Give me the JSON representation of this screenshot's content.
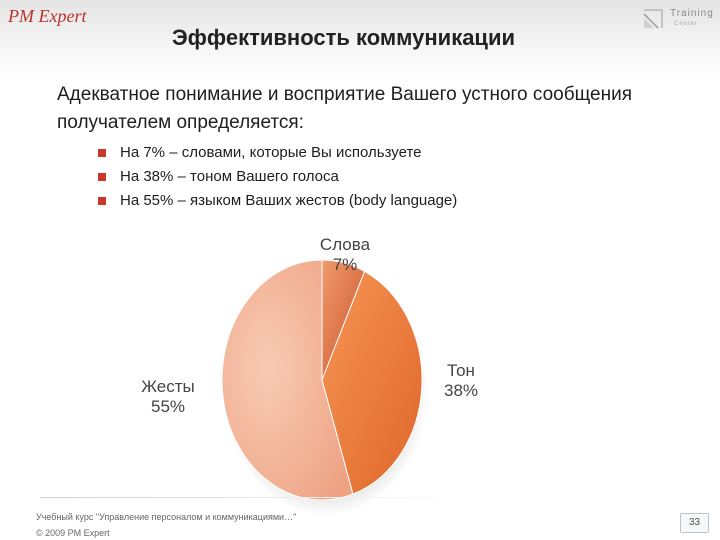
{
  "header": {
    "brand": "PM Expert",
    "logo": {
      "line1": "Training",
      "line2": "Center"
    },
    "title": "Эффективность коммуникации"
  },
  "content": {
    "intro_line1": "Адекватное понимание и восприятие Вашего устного сообщения",
    "intro_line2": "получателем определяется:",
    "bullets": [
      {
        "text": "На 7% – словами, которые Вы используете"
      },
      {
        "text": "На 38% – тоном Вашего голоса"
      },
      {
        "text": "На 55% – языком Ваших жестов (body language)"
      }
    ]
  },
  "chart_data": {
    "type": "pie",
    "slices": [
      {
        "label": "Слова",
        "value": 7,
        "value_label": "7%",
        "color": "#e06a3c"
      },
      {
        "label": "Тон",
        "value": 38,
        "value_label": "38%",
        "color": "#f07a3a"
      },
      {
        "label": "Жесты",
        "value": 55,
        "value_label": "55%",
        "color": "#f2b296"
      }
    ],
    "start": "12 o'clock",
    "direction": "clockwise",
    "style": "3d",
    "legend": "none"
  },
  "footer": {
    "course": "Учебный курс \"Управление персоналом и коммуникациями…\"",
    "copyright": "© 2009 PM Expert",
    "page": "33"
  },
  "colors": {
    "brand": "#b8342a",
    "bullet": "#c9382b"
  }
}
